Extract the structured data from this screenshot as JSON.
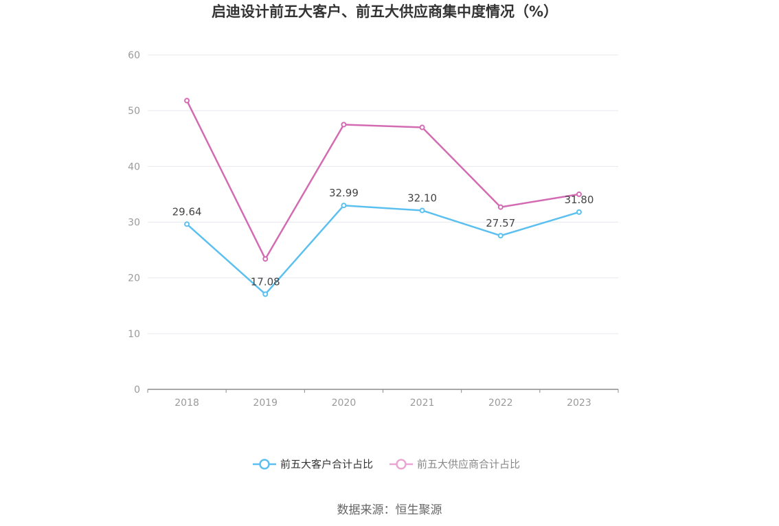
{
  "chart_data": {
    "type": "line",
    "title": "启迪设计前五大客户、前五大供应商集中度情况（%）",
    "categories": [
      "2018",
      "2019",
      "2020",
      "2021",
      "2022",
      "2023"
    ],
    "ylim": [
      0,
      60
    ],
    "yticks": [
      0,
      10,
      20,
      30,
      40,
      50,
      60
    ],
    "grid": true,
    "legend_position": "bottom",
    "series": [
      {
        "name": "前五大客户合计占比",
        "color": "#5bc0ef",
        "values": [
          29.64,
          17.08,
          32.99,
          32.1,
          27.57,
          31.8
        ],
        "labels": [
          "29.64",
          "17.08",
          "32.99",
          "32.10",
          "27.57",
          "31.80"
        ],
        "show_labels": true
      },
      {
        "name": "前五大供应商合计占比",
        "color": "#d36bb3",
        "legend_color": "#e9a6d3",
        "values": [
          51.8,
          23.4,
          47.5,
          47.0,
          32.7,
          35.0
        ],
        "show_labels": false
      }
    ]
  },
  "source": "数据来源：恒生聚源"
}
